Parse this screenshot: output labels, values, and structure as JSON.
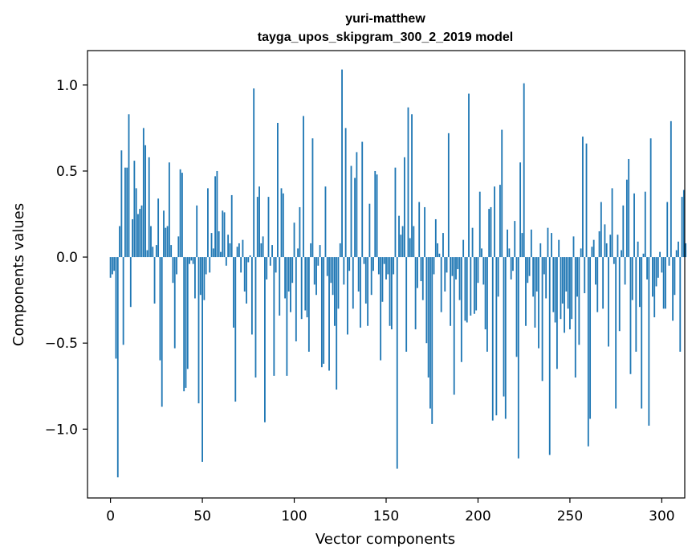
{
  "chart_data": {
    "type": "bar",
    "title": "yuri-matthew",
    "subtitle": "tayga_upos_skipgram_300_2_2019 model",
    "xlabel": "Vector components",
    "ylabel": "Components values",
    "xlim": [
      -12.5,
      312.5
    ],
    "ylim": [
      -1.4,
      1.2
    ],
    "xticks": [
      0,
      50,
      100,
      150,
      200,
      250,
      300
    ],
    "xtick_labels": [
      "0",
      "50",
      "100",
      "150",
      "200",
      "250",
      "300"
    ],
    "yticks": [
      -1.0,
      -0.5,
      0.0,
      0.5,
      1.0
    ],
    "ytick_labels": [
      "−1.0",
      "−0.5",
      "0.0",
      "0.5",
      "1.0"
    ],
    "bar_color": "#1f77b4",
    "grid": false,
    "legend": "none",
    "x_start": 0,
    "values": [
      -0.12,
      -0.1,
      -0.08,
      -0.59,
      -1.28,
      0.18,
      0.62,
      -0.51,
      0.52,
      0.52,
      0.83,
      -0.29,
      0.22,
      0.56,
      0.4,
      0.25,
      0.28,
      0.3,
      0.75,
      0.65,
      0.04,
      0.58,
      0.18,
      0.06,
      -0.27,
      0.07,
      0.34,
      -0.6,
      -0.87,
      0.27,
      0.17,
      0.18,
      0.55,
      0.07,
      -0.15,
      -0.53,
      -0.1,
      0.12,
      0.51,
      0.49,
      -0.78,
      -0.76,
      -0.65,
      -0.04,
      -0.02,
      -0.04,
      -0.24,
      0.3,
      -0.85,
      -0.22,
      -1.19,
      -0.25,
      -0.1,
      0.4,
      -0.09,
      0.14,
      0.05,
      0.47,
      0.5,
      0.15,
      0.03,
      0.27,
      0.26,
      -0.05,
      0.13,
      0.08,
      0.36,
      -0.41,
      -0.84,
      0.06,
      0.08,
      -0.09,
      0.1,
      -0.2,
      -0.27,
      -0.03,
      0.01,
      -0.45,
      0.98,
      -0.7,
      0.35,
      0.41,
      0.08,
      0.12,
      -0.96,
      -0.13,
      0.35,
      -0.05,
      0.07,
      -0.69,
      -0.09,
      0.78,
      -0.34,
      0.4,
      0.37,
      -0.24,
      -0.69,
      -0.2,
      -0.32,
      -0.15,
      0.2,
      -0.49,
      0.05,
      0.29,
      -0.36,
      0.82,
      -0.31,
      -0.35,
      -0.55,
      0.08,
      0.69,
      -0.16,
      -0.22,
      -0.05,
      0.07,
      -0.64,
      -0.62,
      0.41,
      -0.11,
      -0.66,
      -0.15,
      -0.22,
      -0.4,
      -0.77,
      -0.3,
      0.08,
      1.09,
      -0.16,
      0.75,
      -0.45,
      -0.08,
      0.53,
      -0.3,
      0.46,
      0.61,
      -0.2,
      -0.41,
      0.67,
      -0.04,
      -0.27,
      -0.4,
      0.31,
      -0.22,
      -0.08,
      0.5,
      0.48,
      -0.1,
      -0.6,
      -0.26,
      -0.04,
      -0.13,
      -0.1,
      -0.4,
      -0.42,
      -0.1,
      0.52,
      -1.23,
      0.24,
      0.13,
      0.18,
      0.58,
      -0.55,
      0.87,
      0.11,
      0.83,
      0.18,
      -0.42,
      -0.18,
      0.32,
      -0.14,
      -0.25,
      0.29,
      -0.5,
      -0.7,
      -0.88,
      -0.97,
      -0.1,
      0.22,
      0.08,
      0.02,
      -0.32,
      0.14,
      -0.2,
      -0.09,
      0.72,
      -0.4,
      -0.11,
      -0.8,
      -0.13,
      -0.07,
      -0.25,
      -0.61,
      0.1,
      -0.37,
      -0.38,
      0.95,
      -0.34,
      0.17,
      -0.33,
      -0.31,
      -0.15,
      0.38,
      0.05,
      -0.16,
      -0.42,
      -0.55,
      0.28,
      0.29,
      -0.95,
      0.41,
      -0.92,
      -0.23,
      0.42,
      0.74,
      -0.81,
      -0.94,
      0.16,
      0.05,
      -0.13,
      -0.08,
      0.21,
      -0.58,
      -1.17,
      0.55,
      0.14,
      1.01,
      -0.4,
      -0.15,
      -0.11,
      0.16,
      -0.23,
      -0.41,
      -0.2,
      -0.53,
      0.08,
      -0.72,
      -0.1,
      -0.24,
      0.17,
      -1.15,
      0.14,
      -0.32,
      -0.38,
      -0.65,
      0.1,
      -0.36,
      -0.27,
      -0.44,
      -0.2,
      -0.3,
      -0.42,
      -0.36,
      0.12,
      -0.7,
      -0.23,
      -0.51,
      0.05,
      0.7,
      -0.21,
      0.66,
      -1.1,
      -0.94,
      0.06,
      0.1,
      -0.16,
      -0.32,
      0.15,
      0.32,
      -0.3,
      0.19,
      0.08,
      -0.52,
      0.13,
      0.4,
      -0.04,
      -0.88,
      0.13,
      -0.43,
      0.04,
      0.3,
      -0.16,
      0.45,
      0.57,
      -0.68,
      -0.25,
      0.37,
      -0.55,
      0.09,
      -0.29,
      -0.88,
      0.02,
      0.38,
      -0.13,
      -0.98,
      0.69,
      -0.23,
      -0.35,
      -0.17,
      -0.12,
      0.03,
      -0.09,
      -0.3,
      -0.3,
      0.32,
      -0.05,
      0.79,
      -0.37,
      -0.22,
      0.04,
      0.09,
      -0.55,
      0.35,
      0.39,
      0.08
    ]
  }
}
